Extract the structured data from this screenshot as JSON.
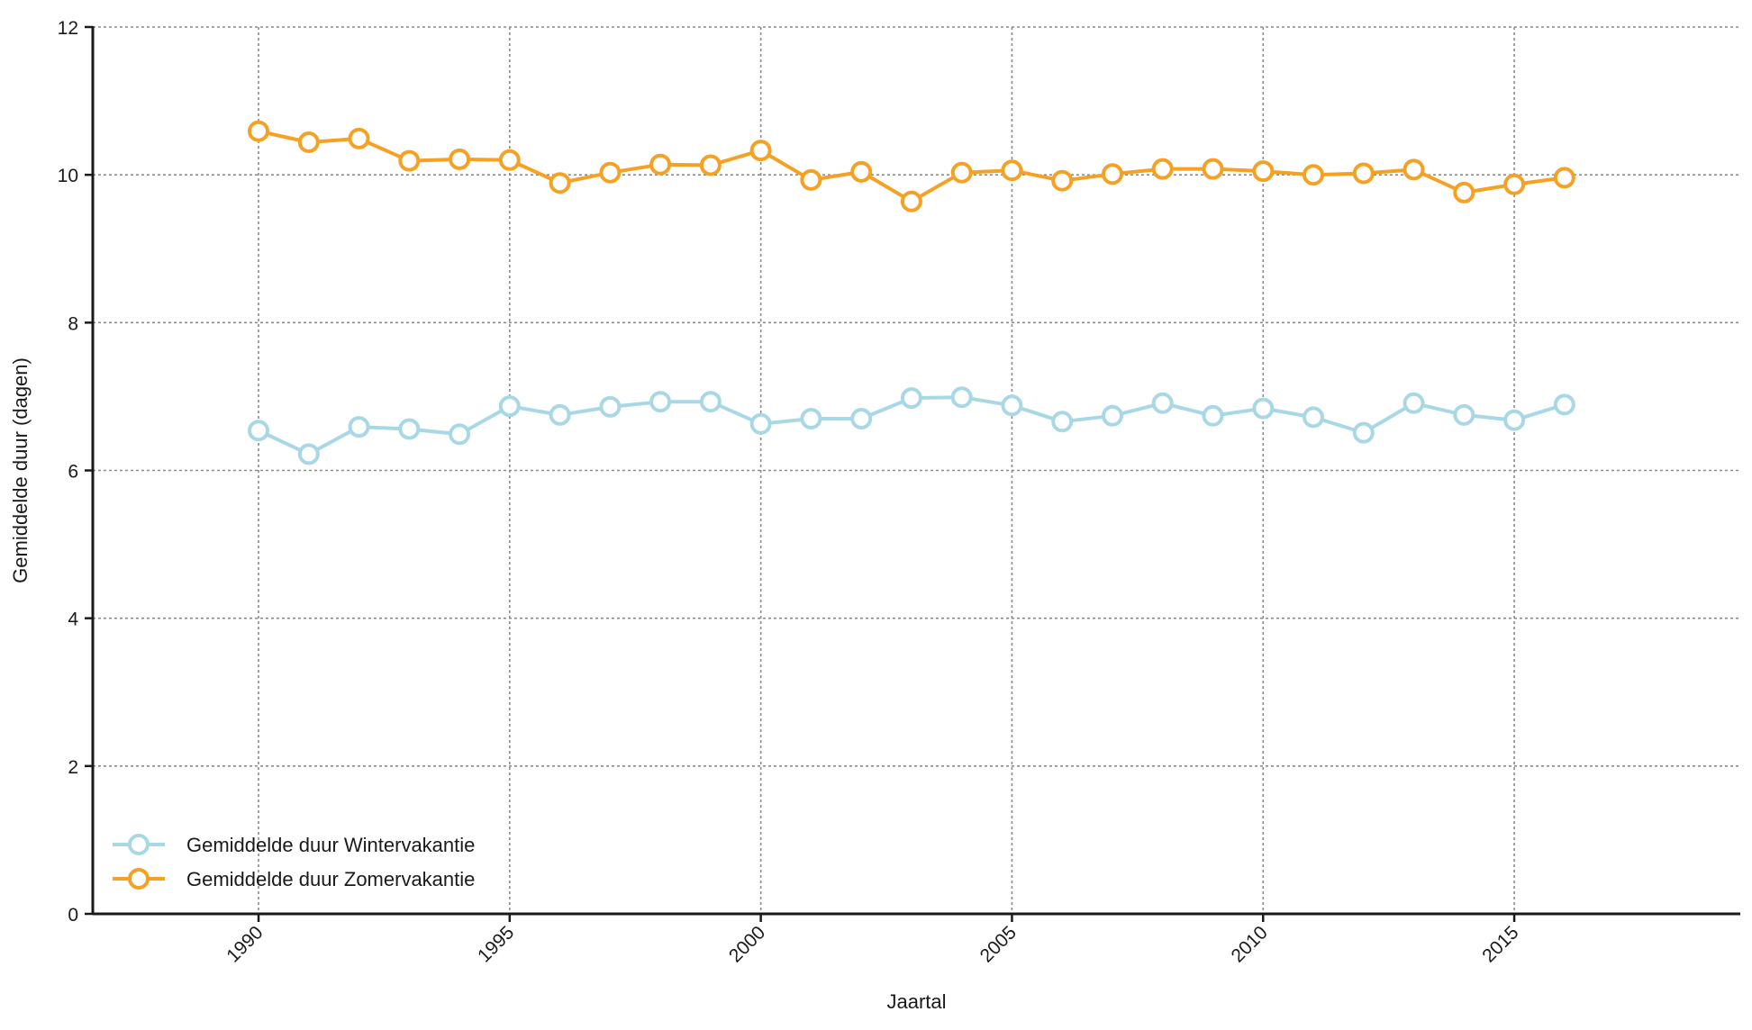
{
  "chart_data": {
    "type": "line",
    "title": "",
    "xlabel": "Jaartal",
    "ylabel": "Gemiddelde duur (dagen)",
    "xlim": [
      1986.7,
      2019.5
    ],
    "ylim": [
      0,
      12
    ],
    "xticks": [
      1990,
      1995,
      2000,
      2005,
      2010,
      2015
    ],
    "yticks": [
      0,
      2,
      4,
      6,
      8,
      10,
      12
    ],
    "grid": true,
    "legend_position": "bottom-left",
    "x": [
      1990,
      1991,
      1992,
      1993,
      1994,
      1995,
      1996,
      1997,
      1998,
      1999,
      2000,
      2001,
      2002,
      2003,
      2004,
      2005,
      2006,
      2007,
      2008,
      2009,
      2010,
      2011,
      2012,
      2013,
      2014,
      2015,
      2016
    ],
    "series": [
      {
        "name": "Gemiddelde duur Wintervakantie",
        "color": "#a8d8e6",
        "values": [
          6.54,
          6.22,
          6.59,
          6.56,
          6.49,
          6.87,
          6.75,
          6.86,
          6.93,
          6.93,
          6.63,
          6.7,
          6.7,
          6.98,
          6.99,
          6.88,
          6.66,
          6.74,
          6.91,
          6.74,
          6.84,
          6.72,
          6.51,
          6.91,
          6.75,
          6.68,
          6.89
        ]
      },
      {
        "name": "Gemiddelde duur Zomervakantie",
        "color": "#f5a123",
        "values": [
          10.59,
          10.44,
          10.49,
          10.19,
          10.21,
          10.2,
          9.89,
          10.03,
          10.14,
          10.13,
          10.33,
          9.93,
          10.04,
          9.64,
          10.03,
          10.06,
          9.92,
          10.01,
          10.08,
          10.08,
          10.05,
          10.0,
          10.02,
          10.07,
          9.76,
          9.87,
          9.96
        ]
      }
    ]
  }
}
